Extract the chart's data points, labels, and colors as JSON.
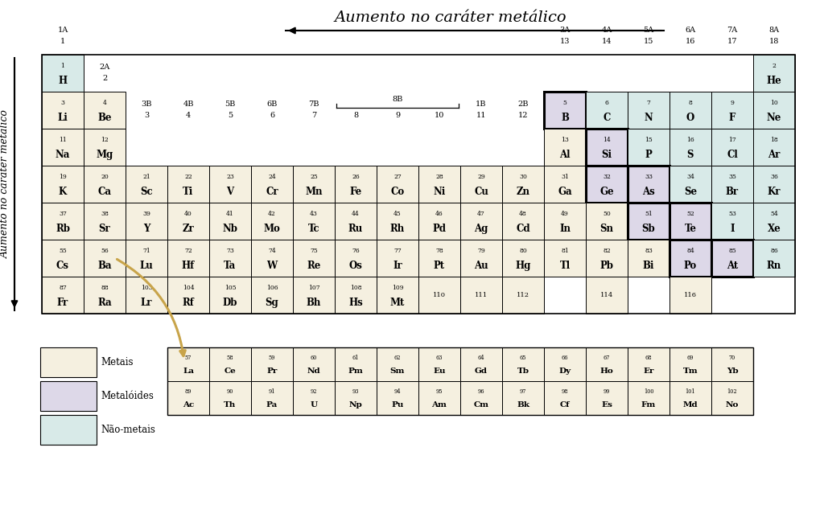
{
  "title": "Aumento no caráter metálico",
  "bg_color": "#ffffff",
  "metal_color": "#f5f0e0",
  "metalloid_color": "#ddd8e8",
  "nonmetal_color": "#d8eae8",
  "elements": [
    {
      "num": 1,
      "sym": "H",
      "row": 1,
      "col": 1,
      "type": "nonmetal"
    },
    {
      "num": 2,
      "sym": "He",
      "row": 1,
      "col": 18,
      "type": "nonmetal"
    },
    {
      "num": 3,
      "sym": "Li",
      "row": 2,
      "col": 1,
      "type": "metal"
    },
    {
      "num": 4,
      "sym": "Be",
      "row": 2,
      "col": 2,
      "type": "metal"
    },
    {
      "num": 5,
      "sym": "B",
      "row": 2,
      "col": 13,
      "type": "metalloid"
    },
    {
      "num": 6,
      "sym": "C",
      "row": 2,
      "col": 14,
      "type": "nonmetal"
    },
    {
      "num": 7,
      "sym": "N",
      "row": 2,
      "col": 15,
      "type": "nonmetal"
    },
    {
      "num": 8,
      "sym": "O",
      "row": 2,
      "col": 16,
      "type": "nonmetal"
    },
    {
      "num": 9,
      "sym": "F",
      "row": 2,
      "col": 17,
      "type": "nonmetal"
    },
    {
      "num": 10,
      "sym": "Ne",
      "row": 2,
      "col": 18,
      "type": "nonmetal"
    },
    {
      "num": 11,
      "sym": "Na",
      "row": 3,
      "col": 1,
      "type": "metal"
    },
    {
      "num": 12,
      "sym": "Mg",
      "row": 3,
      "col": 2,
      "type": "metal"
    },
    {
      "num": 13,
      "sym": "Al",
      "row": 3,
      "col": 13,
      "type": "metal"
    },
    {
      "num": 14,
      "sym": "Si",
      "row": 3,
      "col": 14,
      "type": "metalloid"
    },
    {
      "num": 15,
      "sym": "P",
      "row": 3,
      "col": 15,
      "type": "nonmetal"
    },
    {
      "num": 16,
      "sym": "S",
      "row": 3,
      "col": 16,
      "type": "nonmetal"
    },
    {
      "num": 17,
      "sym": "Cl",
      "row": 3,
      "col": 17,
      "type": "nonmetal"
    },
    {
      "num": 18,
      "sym": "Ar",
      "row": 3,
      "col": 18,
      "type": "nonmetal"
    },
    {
      "num": 19,
      "sym": "K",
      "row": 4,
      "col": 1,
      "type": "metal"
    },
    {
      "num": 20,
      "sym": "Ca",
      "row": 4,
      "col": 2,
      "type": "metal"
    },
    {
      "num": 21,
      "sym": "Sc",
      "row": 4,
      "col": 3,
      "type": "metal"
    },
    {
      "num": 22,
      "sym": "Ti",
      "row": 4,
      "col": 4,
      "type": "metal"
    },
    {
      "num": 23,
      "sym": "V",
      "row": 4,
      "col": 5,
      "type": "metal"
    },
    {
      "num": 24,
      "sym": "Cr",
      "row": 4,
      "col": 6,
      "type": "metal"
    },
    {
      "num": 25,
      "sym": "Mn",
      "row": 4,
      "col": 7,
      "type": "metal"
    },
    {
      "num": 26,
      "sym": "Fe",
      "row": 4,
      "col": 8,
      "type": "metal"
    },
    {
      "num": 27,
      "sym": "Co",
      "row": 4,
      "col": 9,
      "type": "metal"
    },
    {
      "num": 28,
      "sym": "Ni",
      "row": 4,
      "col": 10,
      "type": "metal"
    },
    {
      "num": 29,
      "sym": "Cu",
      "row": 4,
      "col": 11,
      "type": "metal"
    },
    {
      "num": 30,
      "sym": "Zn",
      "row": 4,
      "col": 12,
      "type": "metal"
    },
    {
      "num": 31,
      "sym": "Ga",
      "row": 4,
      "col": 13,
      "type": "metal"
    },
    {
      "num": 32,
      "sym": "Ge",
      "row": 4,
      "col": 14,
      "type": "metalloid"
    },
    {
      "num": 33,
      "sym": "As",
      "row": 4,
      "col": 15,
      "type": "metalloid"
    },
    {
      "num": 34,
      "sym": "Se",
      "row": 4,
      "col": 16,
      "type": "nonmetal"
    },
    {
      "num": 35,
      "sym": "Br",
      "row": 4,
      "col": 17,
      "type": "nonmetal"
    },
    {
      "num": 36,
      "sym": "Kr",
      "row": 4,
      "col": 18,
      "type": "nonmetal"
    },
    {
      "num": 37,
      "sym": "Rb",
      "row": 5,
      "col": 1,
      "type": "metal"
    },
    {
      "num": 38,
      "sym": "Sr",
      "row": 5,
      "col": 2,
      "type": "metal"
    },
    {
      "num": 39,
      "sym": "Y",
      "row": 5,
      "col": 3,
      "type": "metal"
    },
    {
      "num": 40,
      "sym": "Zr",
      "row": 5,
      "col": 4,
      "type": "metal"
    },
    {
      "num": 41,
      "sym": "Nb",
      "row": 5,
      "col": 5,
      "type": "metal"
    },
    {
      "num": 42,
      "sym": "Mo",
      "row": 5,
      "col": 6,
      "type": "metal"
    },
    {
      "num": 43,
      "sym": "Tc",
      "row": 5,
      "col": 7,
      "type": "metal"
    },
    {
      "num": 44,
      "sym": "Ru",
      "row": 5,
      "col": 8,
      "type": "metal"
    },
    {
      "num": 45,
      "sym": "Rh",
      "row": 5,
      "col": 9,
      "type": "metal"
    },
    {
      "num": 46,
      "sym": "Pd",
      "row": 5,
      "col": 10,
      "type": "metal"
    },
    {
      "num": 47,
      "sym": "Ag",
      "row": 5,
      "col": 11,
      "type": "metal"
    },
    {
      "num": 48,
      "sym": "Cd",
      "row": 5,
      "col": 12,
      "type": "metal"
    },
    {
      "num": 49,
      "sym": "In",
      "row": 5,
      "col": 13,
      "type": "metal"
    },
    {
      "num": 50,
      "sym": "Sn",
      "row": 5,
      "col": 14,
      "type": "metal"
    },
    {
      "num": 51,
      "sym": "Sb",
      "row": 5,
      "col": 15,
      "type": "metalloid"
    },
    {
      "num": 52,
      "sym": "Te",
      "row": 5,
      "col": 16,
      "type": "metalloid"
    },
    {
      "num": 53,
      "sym": "I",
      "row": 5,
      "col": 17,
      "type": "nonmetal"
    },
    {
      "num": 54,
      "sym": "Xe",
      "row": 5,
      "col": 18,
      "type": "nonmetal"
    },
    {
      "num": 55,
      "sym": "Cs",
      "row": 6,
      "col": 1,
      "type": "metal"
    },
    {
      "num": 56,
      "sym": "Ba",
      "row": 6,
      "col": 2,
      "type": "metal"
    },
    {
      "num": 71,
      "sym": "Lu",
      "row": 6,
      "col": 3,
      "type": "metal"
    },
    {
      "num": 72,
      "sym": "Hf",
      "row": 6,
      "col": 4,
      "type": "metal"
    },
    {
      "num": 73,
      "sym": "Ta",
      "row": 6,
      "col": 5,
      "type": "metal"
    },
    {
      "num": 74,
      "sym": "W",
      "row": 6,
      "col": 6,
      "type": "metal"
    },
    {
      "num": 75,
      "sym": "Re",
      "row": 6,
      "col": 7,
      "type": "metal"
    },
    {
      "num": 76,
      "sym": "Os",
      "row": 6,
      "col": 8,
      "type": "metal"
    },
    {
      "num": 77,
      "sym": "Ir",
      "row": 6,
      "col": 9,
      "type": "metal"
    },
    {
      "num": 78,
      "sym": "Pt",
      "row": 6,
      "col": 10,
      "type": "metal"
    },
    {
      "num": 79,
      "sym": "Au",
      "row": 6,
      "col": 11,
      "type": "metal"
    },
    {
      "num": 80,
      "sym": "Hg",
      "row": 6,
      "col": 12,
      "type": "metal"
    },
    {
      "num": 81,
      "sym": "Tl",
      "row": 6,
      "col": 13,
      "type": "metal"
    },
    {
      "num": 82,
      "sym": "Pb",
      "row": 6,
      "col": 14,
      "type": "metal"
    },
    {
      "num": 83,
      "sym": "Bi",
      "row": 6,
      "col": 15,
      "type": "metal"
    },
    {
      "num": 84,
      "sym": "Po",
      "row": 6,
      "col": 16,
      "type": "metalloid"
    },
    {
      "num": 85,
      "sym": "At",
      "row": 6,
      "col": 17,
      "type": "metalloid"
    },
    {
      "num": 86,
      "sym": "Rn",
      "row": 6,
      "col": 18,
      "type": "nonmetal"
    },
    {
      "num": 87,
      "sym": "Fr",
      "row": 7,
      "col": 1,
      "type": "metal"
    },
    {
      "num": 88,
      "sym": "Ra",
      "row": 7,
      "col": 2,
      "type": "metal"
    },
    {
      "num": 103,
      "sym": "Lr",
      "row": 7,
      "col": 3,
      "type": "metal"
    },
    {
      "num": 104,
      "sym": "Rf",
      "row": 7,
      "col": 4,
      "type": "metal"
    },
    {
      "num": 105,
      "sym": "Db",
      "row": 7,
      "col": 5,
      "type": "metal"
    },
    {
      "num": 106,
      "sym": "Sg",
      "row": 7,
      "col": 6,
      "type": "metal"
    },
    {
      "num": 107,
      "sym": "Bh",
      "row": 7,
      "col": 7,
      "type": "metal"
    },
    {
      "num": 108,
      "sym": "Hs",
      "row": 7,
      "col": 8,
      "type": "metal"
    },
    {
      "num": 109,
      "sym": "Mt",
      "row": 7,
      "col": 9,
      "type": "metal"
    },
    {
      "num": 110,
      "sym": "110",
      "row": 7,
      "col": 10,
      "type": "metal"
    },
    {
      "num": 111,
      "sym": "111",
      "row": 7,
      "col": 11,
      "type": "metal"
    },
    {
      "num": 112,
      "sym": "112",
      "row": 7,
      "col": 12,
      "type": "metal"
    },
    {
      "num": 114,
      "sym": "114",
      "row": 7,
      "col": 14,
      "type": "metal"
    },
    {
      "num": 116,
      "sym": "116",
      "row": 7,
      "col": 16,
      "type": "metal"
    },
    {
      "num": 57,
      "sym": "La",
      "row": 9,
      "col": 4,
      "type": "metal"
    },
    {
      "num": 58,
      "sym": "Ce",
      "row": 9,
      "col": 5,
      "type": "metal"
    },
    {
      "num": 59,
      "sym": "Pr",
      "row": 9,
      "col": 6,
      "type": "metal"
    },
    {
      "num": 60,
      "sym": "Nd",
      "row": 9,
      "col": 7,
      "type": "metal"
    },
    {
      "num": 61,
      "sym": "Pm",
      "row": 9,
      "col": 8,
      "type": "metal"
    },
    {
      "num": 62,
      "sym": "Sm",
      "row": 9,
      "col": 9,
      "type": "metal"
    },
    {
      "num": 63,
      "sym": "Eu",
      "row": 9,
      "col": 10,
      "type": "metal"
    },
    {
      "num": 64,
      "sym": "Gd",
      "row": 9,
      "col": 11,
      "type": "metal"
    },
    {
      "num": 65,
      "sym": "Tb",
      "row": 9,
      "col": 12,
      "type": "metal"
    },
    {
      "num": 66,
      "sym": "Dy",
      "row": 9,
      "col": 13,
      "type": "metal"
    },
    {
      "num": 67,
      "sym": "Ho",
      "row": 9,
      "col": 14,
      "type": "metal"
    },
    {
      "num": 68,
      "sym": "Er",
      "row": 9,
      "col": 15,
      "type": "metal"
    },
    {
      "num": 69,
      "sym": "Tm",
      "row": 9,
      "col": 16,
      "type": "metal"
    },
    {
      "num": 70,
      "sym": "Yb",
      "row": 9,
      "col": 17,
      "type": "metal"
    },
    {
      "num": 89,
      "sym": "Ac",
      "row": 10,
      "col": 4,
      "type": "metal"
    },
    {
      "num": 90,
      "sym": "Th",
      "row": 10,
      "col": 5,
      "type": "metal"
    },
    {
      "num": 91,
      "sym": "Pa",
      "row": 10,
      "col": 6,
      "type": "metal"
    },
    {
      "num": 92,
      "sym": "U",
      "row": 10,
      "col": 7,
      "type": "metal"
    },
    {
      "num": 93,
      "sym": "Np",
      "row": 10,
      "col": 8,
      "type": "metal"
    },
    {
      "num": 94,
      "sym": "Pu",
      "row": 10,
      "col": 9,
      "type": "metal"
    },
    {
      "num": 95,
      "sym": "Am",
      "row": 10,
      "col": 10,
      "type": "metal"
    },
    {
      "num": 96,
      "sym": "Cm",
      "row": 10,
      "col": 11,
      "type": "metal"
    },
    {
      "num": 97,
      "sym": "Bk",
      "row": 10,
      "col": 12,
      "type": "metal"
    },
    {
      "num": 98,
      "sym": "Cf",
      "row": 10,
      "col": 13,
      "type": "metal"
    },
    {
      "num": 99,
      "sym": "Es",
      "row": 10,
      "col": 14,
      "type": "metal"
    },
    {
      "num": 100,
      "sym": "Fm",
      "row": 10,
      "col": 15,
      "type": "metal"
    },
    {
      "num": 101,
      "sym": "Md",
      "row": 10,
      "col": 16,
      "type": "metal"
    },
    {
      "num": 102,
      "sym": "No",
      "row": 10,
      "col": 17,
      "type": "metal"
    }
  ],
  "thick_border_elements": [
    5,
    14,
    32,
    33,
    51,
    52,
    84,
    85
  ],
  "bold_actinides": [
    91,
    92,
    95,
    96,
    97,
    98,
    99,
    100,
    101,
    102
  ],
  "legend_items": [
    {
      "label": "Metais",
      "color": "#f5f0e0"
    },
    {
      "label": "Metalóides",
      "color": "#ddd8e8"
    },
    {
      "label": "Não-metais",
      "color": "#d8eae8"
    }
  ]
}
